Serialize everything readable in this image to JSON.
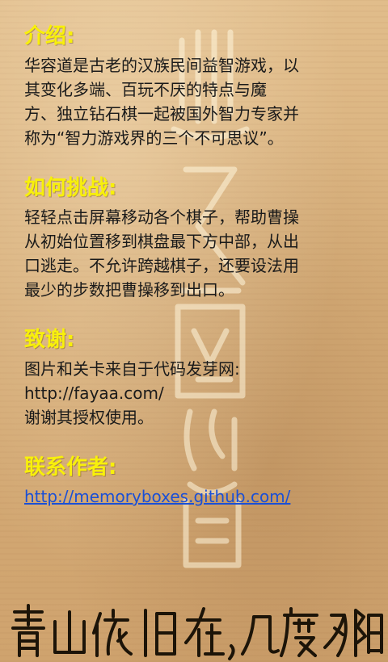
{
  "sections": {
    "intro": {
      "heading": "介绍:",
      "text": "华容道是古老的汉族民间益智游戏，以\n其变化多端、百玩不厌的特点与魔\n方、独立钻石棋一起被国外智力专家并\n称为“智力游戏界的三个不可思议”。"
    },
    "challenge": {
      "heading": "如何挑战:",
      "text": "轻轻点击屏幕移动各个棋子，帮助曹操\n从初始位置移到棋盘最下方中部，从出\n口逃走。不允许跨越棋子，还要设法用\n最少的步数把曹操移到出口。"
    },
    "thanks": {
      "heading": "致谢:",
      "text": "图片和关卡来自于代码发芽网:\nhttp://fayaa.com/\n谢谢其授权使用。"
    },
    "contact": {
      "heading": "联系作者:",
      "link_text": "http://memoryboxes.github.com/"
    }
  },
  "decor": {
    "seal_text": "古华容道",
    "calligraphy_text": "青山依旧在，几度夕阳红"
  },
  "colors": {
    "heading": "#f8f00a",
    "body_text": "#1a1a1a",
    "link": "#1a4fd6",
    "background": "#d9b27f"
  }
}
